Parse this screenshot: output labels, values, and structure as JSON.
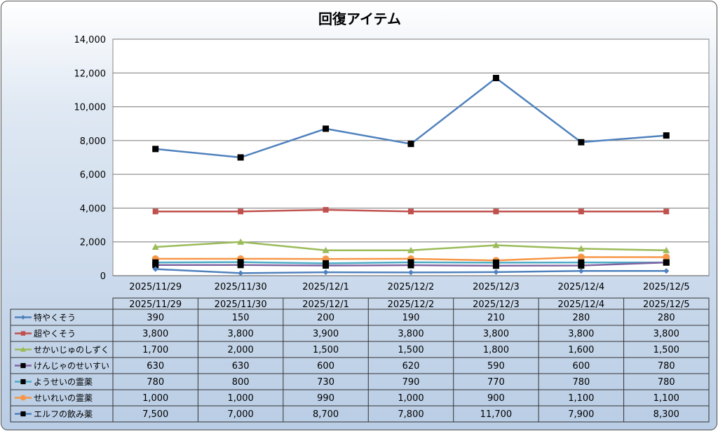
{
  "chart_data": {
    "type": "line",
    "title": "回復アイテム",
    "categories": [
      "2025/11/29",
      "2025/11/30",
      "2025/12/1",
      "2025/12/2",
      "2025/12/3",
      "2025/12/4",
      "2025/12/5"
    ],
    "ylim": [
      0,
      14000
    ],
    "yticks": [
      "0",
      "2,000",
      "4,000",
      "6,000",
      "8,000",
      "10,000",
      "12,000",
      "14,000"
    ],
    "grid": true,
    "legend": "data-table",
    "series": [
      {
        "name": "特やくそう",
        "color": "#4f81bd",
        "marker": "diamond",
        "values": [
          390,
          150,
          200,
          190,
          210,
          280,
          280
        ],
        "labels": [
          "390",
          "150",
          "200",
          "190",
          "210",
          "280",
          "280"
        ]
      },
      {
        "name": "超やくそう",
        "color": "#c0504d",
        "marker": "square",
        "values": [
          3800,
          3800,
          3900,
          3800,
          3800,
          3800,
          3800
        ],
        "labels": [
          "3,800",
          "3,800",
          "3,900",
          "3,800",
          "3,800",
          "3,800",
          "3,800"
        ]
      },
      {
        "name": "せかいじゅのしずく",
        "color": "#9bbb59",
        "marker": "triangle",
        "values": [
          1700,
          2000,
          1500,
          1500,
          1800,
          1600,
          1500
        ],
        "labels": [
          "1,700",
          "2,000",
          "1,500",
          "1,500",
          "1,800",
          "1,600",
          "1,500"
        ]
      },
      {
        "name": "けんじゃのせいすい",
        "color": "#8064a2",
        "marker": "blacksquare",
        "values": [
          630,
          630,
          600,
          620,
          590,
          600,
          780
        ],
        "labels": [
          "630",
          "630",
          "600",
          "620",
          "590",
          "600",
          "780"
        ]
      },
      {
        "name": "ようせいの霊薬",
        "color": "#4bacc6",
        "marker": "blacksquare",
        "values": [
          780,
          800,
          730,
          790,
          770,
          780,
          780
        ],
        "labels": [
          "780",
          "800",
          "730",
          "790",
          "770",
          "780",
          "780"
        ]
      },
      {
        "name": "せいれいの霊薬",
        "color": "#f79646",
        "marker": "circle",
        "values": [
          1000,
          1000,
          990,
          1000,
          900,
          1100,
          1100
        ],
        "labels": [
          "1,000",
          "1,000",
          "990",
          "1,000",
          "900",
          "1,100",
          "1,100"
        ]
      },
      {
        "name": "エルフの飲み薬",
        "color": "#4f81bd",
        "marker": "blacksquare",
        "values": [
          7500,
          7000,
          8700,
          7800,
          11700,
          7900,
          8300
        ],
        "labels": [
          "7,500",
          "7,000",
          "8,700",
          "7,800",
          "11,700",
          "7,900",
          "8,300"
        ]
      }
    ]
  }
}
